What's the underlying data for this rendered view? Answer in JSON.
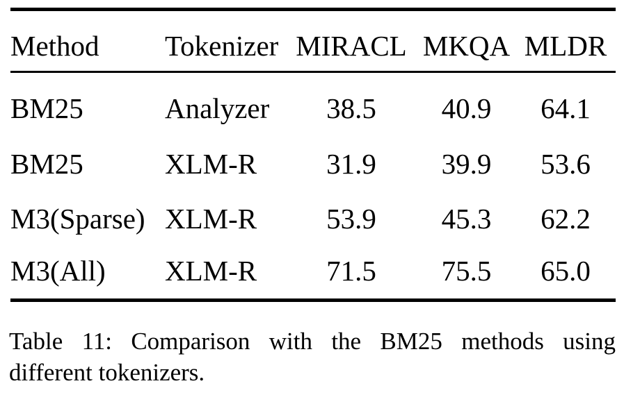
{
  "table": {
    "columns": [
      "Method",
      "Tokenizer",
      "MIRACL",
      "MKQA",
      "MLDR"
    ],
    "rows": [
      {
        "method": "BM25",
        "tokenizer": "Analyzer",
        "miracl": "38.5",
        "mkqa": "40.9",
        "mldr": "64.1"
      },
      {
        "method": "BM25",
        "tokenizer": "XLM-R",
        "miracl": "31.9",
        "mkqa": "39.9",
        "mldr": "53.6"
      },
      {
        "method": "M3(Sparse)",
        "tokenizer": "XLM-R",
        "miracl": "53.9",
        "mkqa": "45.3",
        "mldr": "62.2"
      },
      {
        "method": "M3(All)",
        "tokenizer": "XLM-R",
        "miracl": "71.5",
        "mkqa": "75.5",
        "mldr": "65.0"
      }
    ]
  },
  "caption": {
    "full_text": "Table 11: Comparison with the BM25 methods using different tokenizers.",
    "lines": [
      "Table 11: Comparison with the BM25 methods using",
      "different tokenizers."
    ]
  },
  "colors": {
    "text": "#000000",
    "background": "#ffffff",
    "rule": "#000000"
  }
}
